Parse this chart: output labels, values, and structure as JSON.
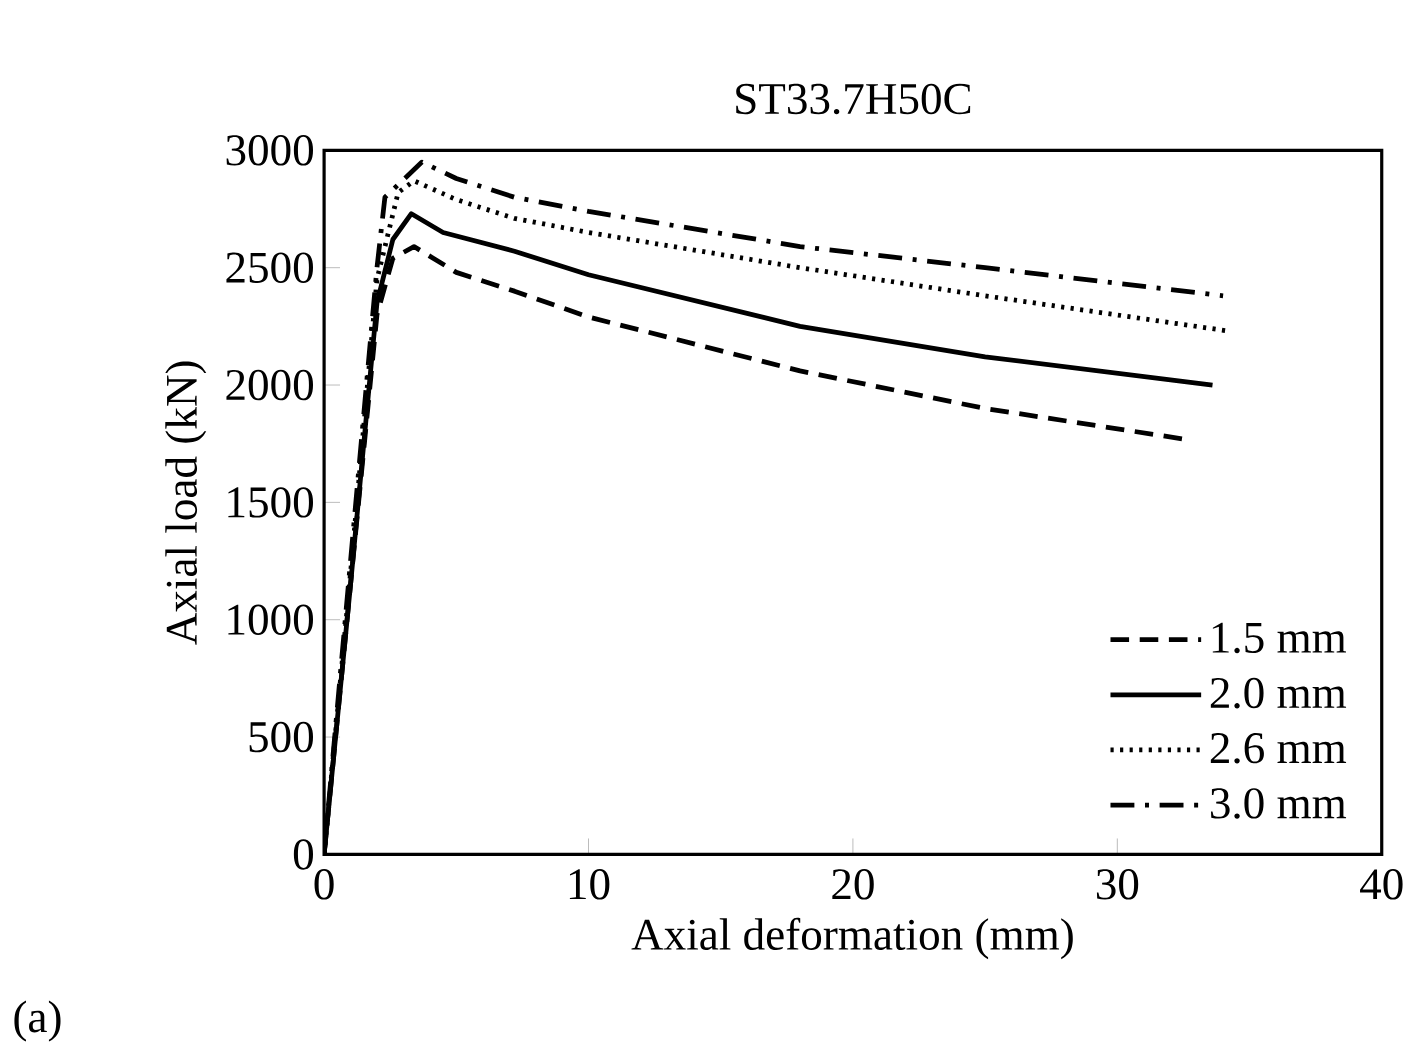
{
  "chart_data": {
    "type": "line",
    "title": "ST33.7H50C",
    "xlabel": "Axial deformation (mm)",
    "ylabel": "Axial load (kN)",
    "annotations": [
      "(a)"
    ],
    "xlim": [
      0,
      40
    ],
    "ylim": [
      0,
      3000
    ],
    "xticks": [
      0,
      10,
      20,
      30,
      40
    ],
    "yticks": [
      0,
      500,
      1000,
      1500,
      2000,
      2500,
      3000
    ],
    "grid": false,
    "legend": "bottom right",
    "marker": "none",
    "series": [
      {
        "name": "1.5 mm",
        "color": "#000000",
        "line_style": "dashed",
        "x": [
          0,
          1,
          2,
          2.6,
          3.4,
          5,
          7.2,
          10,
          18,
          25,
          32.5
        ],
        "values": [
          0,
          1150,
          2300,
          2540,
          2590,
          2480,
          2400,
          2290,
          2060,
          1900,
          1770
        ]
      },
      {
        "name": "2.0 mm",
        "color": "#000000",
        "line_style": "solid",
        "x": [
          0,
          1,
          2,
          2.6,
          3.3,
          4.5,
          7.2,
          10,
          18,
          25,
          33.6
        ],
        "values": [
          0,
          1150,
          2350,
          2620,
          2730,
          2650,
          2570,
          2470,
          2250,
          2120,
          2000
        ]
      },
      {
        "name": "2.6 mm",
        "color": "#000000",
        "line_style": "dotted",
        "x": [
          0,
          1,
          2,
          2.8,
          3.4,
          5,
          7.2,
          10,
          18,
          25,
          34.2
        ],
        "values": [
          0,
          1200,
          2450,
          2820,
          2870,
          2790,
          2710,
          2650,
          2500,
          2380,
          2230
        ]
      },
      {
        "name": "3.0 mm",
        "color": "#000000",
        "line_style": "dashdot",
        "x": [
          0,
          1,
          2,
          2.3,
          3.7,
          5,
          7.2,
          10,
          18,
          25,
          34
        ],
        "values": [
          0,
          1250,
          2500,
          2800,
          2950,
          2880,
          2800,
          2740,
          2590,
          2500,
          2380
        ]
      }
    ]
  }
}
